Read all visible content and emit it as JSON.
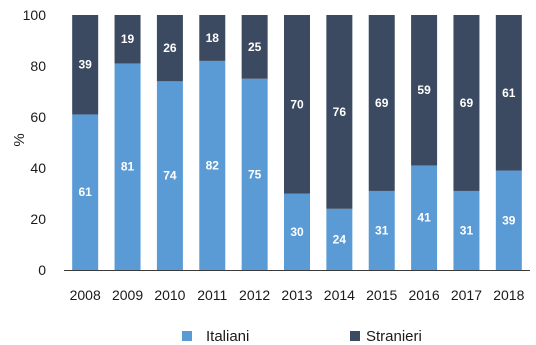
{
  "chart_data": {
    "type": "bar",
    "stacked": true,
    "categories": [
      "2008",
      "2009",
      "2010",
      "2011",
      "2012",
      "2013",
      "2014",
      "2015",
      "2016",
      "2017",
      "2018"
    ],
    "series": [
      {
        "name": "Italiani",
        "values": [
          61,
          81,
          74,
          82,
          75,
          30,
          24,
          31,
          41,
          31,
          39
        ],
        "color": "#5b9bd5"
      },
      {
        "name": "Stranieri",
        "values": [
          39,
          19,
          26,
          18,
          25,
          70,
          76,
          69,
          59,
          69,
          61
        ],
        "color": "#3b4a60"
      }
    ],
    "ylabel": "%",
    "xlabel": "",
    "ylim": [
      0,
      100
    ],
    "yticks": [
      0,
      20,
      40,
      60,
      80,
      100
    ],
    "legend_position": "bottom",
    "grid": false
  }
}
